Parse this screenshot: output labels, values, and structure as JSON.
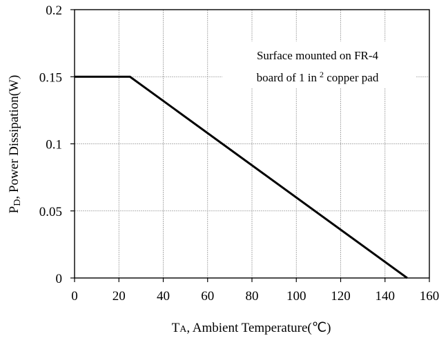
{
  "chart_data": {
    "type": "line",
    "title": "",
    "xlabel": {
      "prefix": "T",
      "subscript": "A",
      "rest": ", Ambient Temperature(℃)"
    },
    "ylabel": {
      "prefix": "P",
      "subscript": "D",
      "rest": ", Power Dissipation(W)"
    },
    "xlim": [
      0,
      160
    ],
    "ylim": [
      0,
      0.2
    ],
    "x_ticks": [
      0,
      20,
      40,
      60,
      80,
      100,
      120,
      140,
      160
    ],
    "x_tick_labels": [
      "0",
      "20",
      "40",
      "60",
      "80",
      "100",
      "120",
      "140",
      "160"
    ],
    "y_ticks": [
      0,
      0.05,
      0.1,
      0.15,
      0.2
    ],
    "y_tick_labels": [
      "0",
      "0.05",
      "0.1",
      "0.15",
      "0.2"
    ],
    "grid": true,
    "series": [
      {
        "x": [
          0,
          25,
          150
        ],
        "y": [
          0.15,
          0.15,
          0
        ],
        "color": "#000000"
      }
    ],
    "annotation": {
      "line1": "Surface mounted on FR-4",
      "line2_start": "board of 1 in",
      "line2_sup": "2",
      "line2_end": " copper pad"
    }
  }
}
